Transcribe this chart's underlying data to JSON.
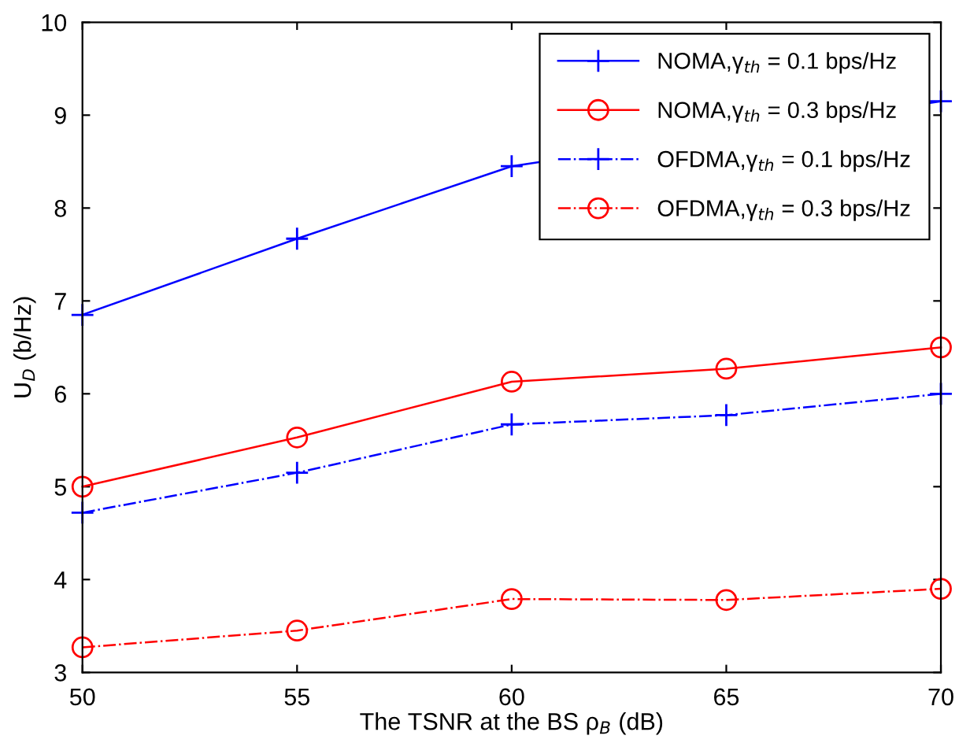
{
  "chart_data": {
    "type": "line",
    "xlabel": "The TSNR at the BS ρ$_{B}$ (dB)",
    "ylabel": "U$_{D}$ (b/Hz)",
    "x": [
      50,
      55,
      60,
      65,
      70
    ],
    "xlim": [
      50,
      70
    ],
    "xticks": [
      50,
      55,
      60,
      65,
      70
    ],
    "ylim": [
      3,
      10
    ],
    "yticks": [
      3,
      4,
      5,
      6,
      7,
      8,
      9,
      10
    ],
    "grid": false,
    "legend": "top right",
    "series": [
      {
        "name": "NOMA,γ$_{th}$ = 0.1 bps/Hz",
        "color": "#0000ff",
        "marker": "cross",
        "line_style": "solid",
        "values": [
          6.85,
          7.67,
          8.45,
          null,
          9.15
        ]
      },
      {
        "name": "NOMA,γ$_{th}$ = 0.3 bps/Hz",
        "color": "#ff0000",
        "marker": "circle",
        "line_style": "solid",
        "values": [
          5.0,
          5.53,
          6.13,
          6.27,
          6.5
        ]
      },
      {
        "name": "OFDMA,γ$_{th}$ = 0.1 bps/Hz",
        "color": "#0000ff",
        "marker": "cross",
        "line_style": "dashdot",
        "values": [
          4.72,
          5.15,
          5.67,
          5.77,
          6.0
        ]
      },
      {
        "name": "OFDMA,γ$_{th}$ = 0.3 bps/Hz",
        "color": "#ff0000",
        "marker": "circle",
        "line_style": "dashdot",
        "values": [
          3.27,
          3.45,
          3.79,
          3.78,
          3.9
        ]
      }
    ]
  }
}
